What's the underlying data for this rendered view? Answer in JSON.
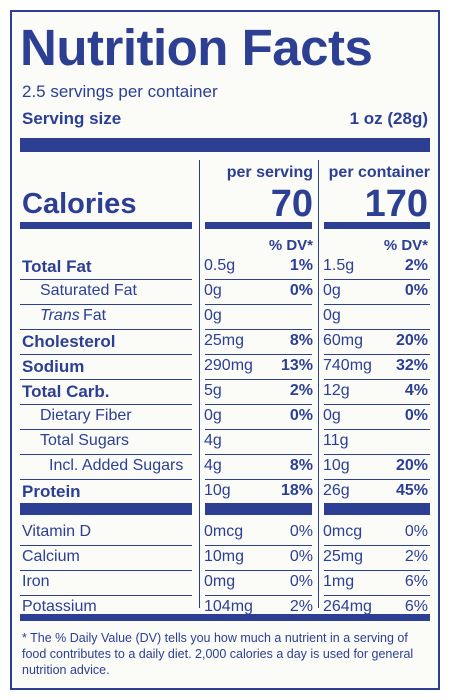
{
  "title": "Nutrition Facts",
  "servings_per_container": "2.5 servings per container",
  "serving_size_label": "Serving size",
  "serving_size_value": "1 oz (28g)",
  "columns": {
    "per_serving": "per serving",
    "per_container": "per container"
  },
  "calories": {
    "label": "Calories",
    "per_serving": "70",
    "per_container": "170"
  },
  "dv_header": "% DV*",
  "nutrients": [
    {
      "name": "Total Fat",
      "s_amt": "0.5g",
      "s_dv": "1%",
      "c_amt": "1.5g",
      "c_dv": "2%"
    },
    {
      "name": "Saturated Fat",
      "s_amt": "0g",
      "s_dv": "0%",
      "c_amt": "0g",
      "c_dv": "0%"
    },
    {
      "name": "Trans",
      "name_suffix": " Fat",
      "s_amt": "0g",
      "s_dv": "",
      "c_amt": "0g",
      "c_dv": ""
    },
    {
      "name": "Cholesterol",
      "s_amt": "25mg",
      "s_dv": "8%",
      "c_amt": "60mg",
      "c_dv": "20%"
    },
    {
      "name": "Sodium",
      "s_amt": "290mg",
      "s_dv": "13%",
      "c_amt": "740mg",
      "c_dv": "32%"
    },
    {
      "name": "Total Carb.",
      "s_amt": "5g",
      "s_dv": "2%",
      "c_amt": "12g",
      "c_dv": "4%"
    },
    {
      "name": "Dietary Fiber",
      "s_amt": "0g",
      "s_dv": "0%",
      "c_amt": "0g",
      "c_dv": "0%"
    },
    {
      "name": "Total Sugars",
      "s_amt": "4g",
      "s_dv": "",
      "c_amt": "11g",
      "c_dv": ""
    },
    {
      "name": "Incl. Added Sugars",
      "s_amt": "4g",
      "s_dv": "8%",
      "c_amt": "10g",
      "c_dv": "20%"
    },
    {
      "name": "Protein",
      "s_amt": "10g",
      "s_dv": "18%",
      "c_amt": "26g",
      "c_dv": "45%"
    }
  ],
  "vitamins": [
    {
      "name": "Vitamin D",
      "s_amt": "0mcg",
      "s_dv": "0%",
      "c_amt": "0mcg",
      "c_dv": "0%"
    },
    {
      "name": "Calcium",
      "s_amt": "10mg",
      "s_dv": "0%",
      "c_amt": "25mg",
      "c_dv": "2%"
    },
    {
      "name": "Iron",
      "s_amt": "0mg",
      "s_dv": "0%",
      "c_amt": "1mg",
      "c_dv": "6%"
    },
    {
      "name": "Potassium",
      "s_amt": "104mg",
      "s_dv": "2%",
      "c_amt": "264mg",
      "c_dv": "6%"
    }
  ],
  "footnote": "* The % Daily Value (DV) tells you how much a nutrient in a serving of food contributes to a daily diet. 2,000 calories a day is used for general nutrition advice.",
  "colors": {
    "ink": "#2c3f93",
    "paper": "#fbfbf8"
  }
}
